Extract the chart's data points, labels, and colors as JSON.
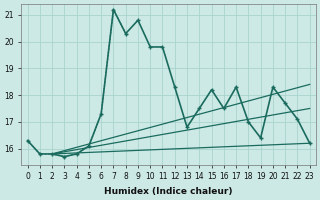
{
  "xlabel": "Humidex (Indice chaleur)",
  "xlim": [
    -0.5,
    23.5
  ],
  "ylim": [
    15.4,
    21.4
  ],
  "yticks": [
    16,
    17,
    18,
    19,
    20,
    21
  ],
  "xticks": [
    0,
    1,
    2,
    3,
    4,
    5,
    6,
    7,
    8,
    9,
    10,
    11,
    12,
    13,
    14,
    15,
    16,
    17,
    18,
    19,
    20,
    21,
    22,
    23
  ],
  "background_color": "#cce9e5",
  "grid_color": "#aad4ce",
  "line_color": "#1a6b5e",
  "line_main": {
    "x": [
      0,
      1,
      2,
      3,
      4,
      5,
      6,
      7,
      8,
      9,
      10,
      11,
      12,
      13,
      14,
      15,
      16,
      17,
      18,
      19,
      20,
      21,
      22,
      23
    ],
    "y": [
      16.3,
      15.8,
      15.8,
      15.7,
      15.8,
      16.1,
      17.3,
      21.2,
      20.3,
      20.8,
      19.8,
      19.8,
      18.3,
      16.8,
      17.5,
      18.2,
      17.5,
      18.3,
      17.0,
      16.4,
      18.3,
      17.7,
      17.1,
      16.2
    ],
    "linewidth": 1.2,
    "markersize": 2.5
  },
  "line_dotted": {
    "x": [
      0,
      1,
      2,
      3,
      4,
      5,
      6,
      7,
      8
    ],
    "y": [
      16.3,
      15.8,
      15.8,
      15.7,
      15.8,
      16.1,
      17.3,
      21.2,
      20.3
    ],
    "linewidth": 0.9,
    "markersize": 2.0
  },
  "trend_lines": [
    {
      "x0": 2,
      "y0": 15.8,
      "x1": 23,
      "y1": 16.2
    },
    {
      "x0": 2,
      "y0": 15.8,
      "x1": 23,
      "y1": 17.5
    },
    {
      "x0": 2,
      "y0": 15.8,
      "x1": 23,
      "y1": 18.4
    }
  ]
}
